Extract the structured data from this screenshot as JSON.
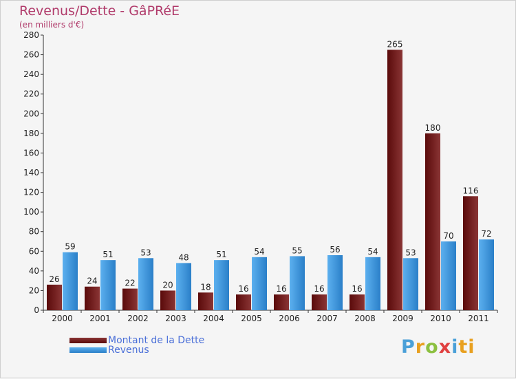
{
  "title": "Revenus/Dette - GâPRéE",
  "subtitle": "(en milliers d'€)",
  "colors": {
    "debt_dark": "#5a0a0a",
    "debt_light": "#8a3535",
    "revenue_dark": "#2a7fc8",
    "revenue_light": "#5cb0ef",
    "axis": "#333333"
  },
  "legend": {
    "debt_label": "Montant de la Dette",
    "revenue_label": "Revenus"
  },
  "logo": {
    "letters": [
      "P",
      "r",
      "o",
      "x",
      "i",
      "ti"
    ]
  },
  "chart_data": {
    "type": "bar",
    "title": "Revenus/Dette - GâPRéE",
    "ylabel": "(en milliers d'€)",
    "xlabel": "",
    "categories": [
      "2000",
      "2001",
      "2002",
      "2003",
      "2004",
      "2005",
      "2006",
      "2007",
      "2008",
      "2009",
      "2010",
      "2011"
    ],
    "series": [
      {
        "name": "Montant de la Dette",
        "values": [
          26,
          24,
          22,
          20,
          18,
          16,
          16,
          16,
          16,
          265,
          180,
          116
        ]
      },
      {
        "name": "Revenus",
        "values": [
          59,
          51,
          53,
          48,
          51,
          54,
          55,
          56,
          54,
          53,
          70,
          72
        ]
      }
    ],
    "ylim": [
      0,
      280
    ],
    "yticks": [
      0,
      20,
      40,
      60,
      80,
      100,
      120,
      140,
      160,
      180,
      200,
      220,
      240,
      260,
      280
    ],
    "grid": false,
    "legend_position": "bottom-left"
  }
}
